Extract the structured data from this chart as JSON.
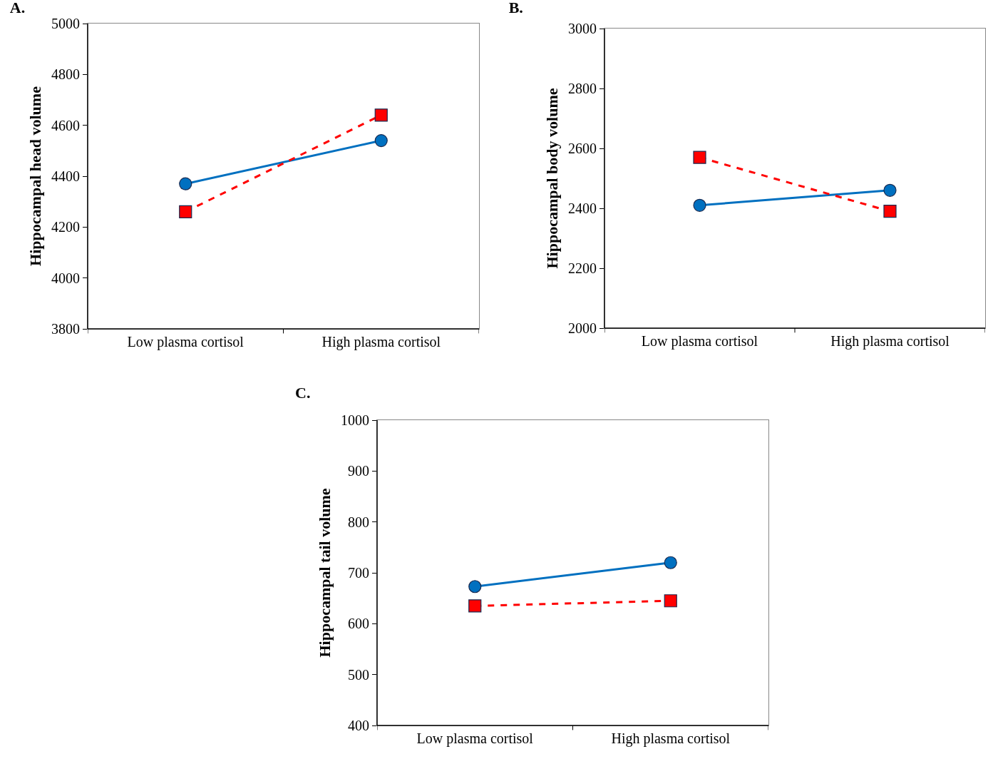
{
  "chart_data": [
    {
      "type": "line",
      "title": "A.",
      "ylabel": "Hippocampal head volume",
      "categories": [
        "Low plasma cortisol",
        "High plasma cortisol"
      ],
      "ylim": [
        3800,
        5000
      ],
      "yticks": [
        3800,
        4000,
        4200,
        4400,
        4600,
        4800,
        5000
      ],
      "grid": false,
      "series": [
        {
          "color": "#0070c0",
          "values": [
            4370,
            4540
          ],
          "marker": "circle",
          "line_style": "solid"
        },
        {
          "color": "#ff0000",
          "values": [
            4260,
            4640
          ],
          "marker": "square",
          "line_style": "dashed"
        }
      ]
    },
    {
      "type": "line",
      "title": "B.",
      "ylabel": "Hippocampal body volume",
      "categories": [
        "Low plasma cortisol",
        "High plasma cortisol"
      ],
      "ylim": [
        2000,
        3000
      ],
      "yticks": [
        2000,
        2200,
        2400,
        2600,
        2800,
        3000
      ],
      "grid": false,
      "series": [
        {
          "color": "#0070c0",
          "values": [
            2410,
            2460
          ],
          "marker": "circle",
          "line_style": "solid"
        },
        {
          "color": "#ff0000",
          "values": [
            2570,
            2390
          ],
          "marker": "square",
          "line_style": "dashed"
        }
      ]
    },
    {
      "type": "line",
      "title": "C.",
      "ylabel": "Hippocampal tail volume",
      "categories": [
        "Low plasma cortisol",
        "High plasma cortisol"
      ],
      "ylim": [
        400,
        1000
      ],
      "yticks": [
        400,
        500,
        600,
        700,
        800,
        900,
        1000
      ],
      "grid": false,
      "series": [
        {
          "color": "#0070c0",
          "values": [
            673,
            720
          ],
          "marker": "circle",
          "line_style": "solid"
        },
        {
          "color": "#ff0000",
          "values": [
            635,
            645
          ],
          "marker": "square",
          "line_style": "dashed"
        }
      ]
    }
  ]
}
